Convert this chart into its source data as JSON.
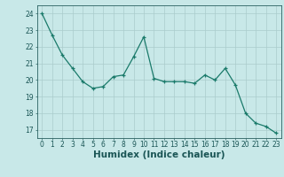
{
  "x": [
    0,
    1,
    2,
    3,
    4,
    5,
    6,
    7,
    8,
    9,
    10,
    11,
    12,
    13,
    14,
    15,
    16,
    17,
    18,
    19,
    20,
    21,
    22,
    23
  ],
  "y": [
    24.0,
    22.7,
    21.5,
    20.7,
    19.9,
    19.5,
    19.6,
    20.2,
    20.3,
    21.4,
    22.6,
    20.1,
    19.9,
    19.9,
    19.9,
    19.8,
    20.3,
    20.0,
    20.7,
    19.7,
    18.0,
    17.4,
    17.2,
    16.8
  ],
  "line_color": "#1a7a6a",
  "marker": "+",
  "bg_color": "#c8e8e8",
  "grid_color": "#aacccc",
  "axis_color": "#2a6060",
  "xlabel": "Humidex (Indice chaleur)",
  "ylim": [
    16.5,
    24.5
  ],
  "xlim": [
    -0.5,
    23.5
  ],
  "yticks": [
    17,
    18,
    19,
    20,
    21,
    22,
    23,
    24
  ],
  "xticks": [
    0,
    1,
    2,
    3,
    4,
    5,
    6,
    7,
    8,
    9,
    10,
    11,
    12,
    13,
    14,
    15,
    16,
    17,
    18,
    19,
    20,
    21,
    22,
    23
  ],
  "tick_color": "#1a5555",
  "label_fontsize": 5.5,
  "xlabel_fontsize": 7.5
}
